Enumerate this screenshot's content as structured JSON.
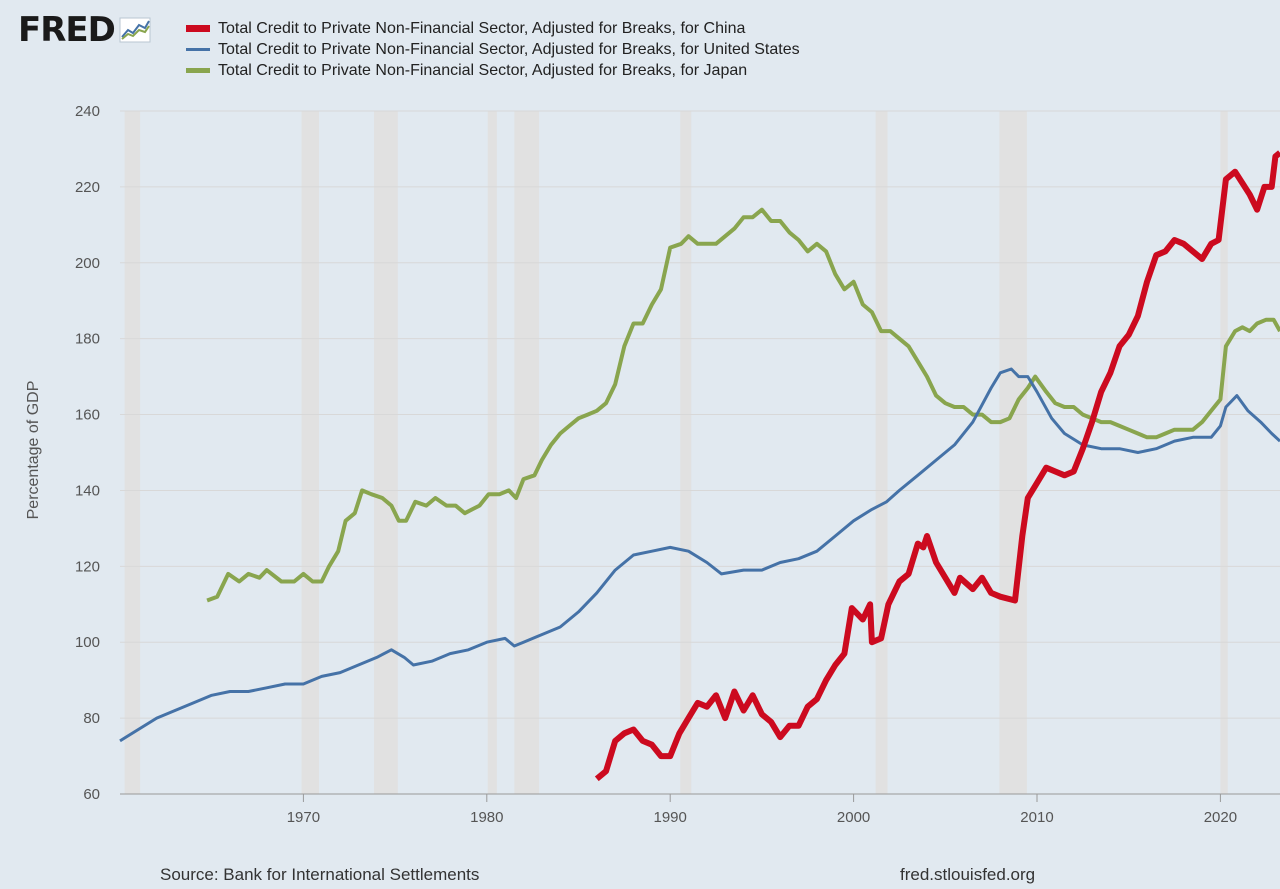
{
  "logo": {
    "text": "FRED"
  },
  "footer": {
    "source": "Source: Bank for International Settlements",
    "url": "fred.stlouisfed.org"
  },
  "colors": {
    "china": "#cc0a1f",
    "us": "#4572a7",
    "japan": "#89a54e",
    "recession": "#e1e1e1",
    "grid": "#d8d8d8",
    "background": "#e1e9f0"
  },
  "chart_data": {
    "type": "line",
    "title": "",
    "xlabel": "",
    "ylabel": "Percentage of GDP",
    "xlim": [
      1960,
      2023.25
    ],
    "ylim": [
      60,
      240
    ],
    "yticks": [
      60,
      80,
      100,
      120,
      140,
      160,
      180,
      200,
      220,
      240
    ],
    "xticks": [
      1970,
      1980,
      1990,
      2000,
      2010,
      2020
    ],
    "legend_position": "top",
    "recessions": [
      [
        1960.25,
        1961.1
      ],
      [
        1969.9,
        1970.85
      ],
      [
        1973.85,
        1975.15
      ],
      [
        1980.05,
        1980.55
      ],
      [
        1981.5,
        1982.85
      ],
      [
        1990.55,
        1991.15
      ],
      [
        2001.2,
        2001.85
      ],
      [
        2007.95,
        2009.45
      ],
      [
        2020.0,
        2020.4
      ]
    ],
    "series": [
      {
        "name": "Total Credit to Private Non-Financial Sector, Adjusted for Breaks, for China",
        "color": "#cc0a1f",
        "width": 6,
        "points": [
          [
            1986.0,
            64
          ],
          [
            1986.5,
            66
          ],
          [
            1987.0,
            74
          ],
          [
            1987.5,
            76
          ],
          [
            1988.0,
            77
          ],
          [
            1988.5,
            74
          ],
          [
            1989.0,
            73
          ],
          [
            1989.5,
            70
          ],
          [
            1990.0,
            70
          ],
          [
            1990.5,
            76
          ],
          [
            1991.0,
            80
          ],
          [
            1991.5,
            84
          ],
          [
            1992.0,
            83
          ],
          [
            1992.5,
            86
          ],
          [
            1993.0,
            80
          ],
          [
            1993.5,
            87
          ],
          [
            1994.0,
            82
          ],
          [
            1994.5,
            86
          ],
          [
            1995.0,
            81
          ],
          [
            1995.5,
            79
          ],
          [
            1996.0,
            75
          ],
          [
            1996.5,
            78
          ],
          [
            1997.0,
            78
          ],
          [
            1997.5,
            83
          ],
          [
            1998.0,
            85
          ],
          [
            1998.5,
            90
          ],
          [
            1999.0,
            94
          ],
          [
            1999.5,
            97
          ],
          [
            1999.9,
            109
          ],
          [
            2000.5,
            106
          ],
          [
            2000.9,
            110
          ],
          [
            2001.0,
            100
          ],
          [
            2001.5,
            101
          ],
          [
            2001.9,
            110
          ],
          [
            2002.5,
            116
          ],
          [
            2003.0,
            118
          ],
          [
            2003.5,
            126
          ],
          [
            2003.8,
            125
          ],
          [
            2004.0,
            128
          ],
          [
            2004.5,
            121
          ],
          [
            2005.0,
            117
          ],
          [
            2005.5,
            113
          ],
          [
            2005.8,
            117
          ],
          [
            2006.5,
            114
          ],
          [
            2007.0,
            117
          ],
          [
            2007.5,
            113
          ],
          [
            2008.0,
            112
          ],
          [
            2008.8,
            111
          ],
          [
            2009.2,
            128
          ],
          [
            2009.5,
            138
          ],
          [
            2010.0,
            142
          ],
          [
            2010.5,
            146
          ],
          [
            2011.0,
            145
          ],
          [
            2011.5,
            144
          ],
          [
            2012.0,
            145
          ],
          [
            2012.5,
            151
          ],
          [
            2013.0,
            158
          ],
          [
            2013.5,
            166
          ],
          [
            2014.0,
            171
          ],
          [
            2014.5,
            178
          ],
          [
            2015.0,
            181
          ],
          [
            2015.5,
            186
          ],
          [
            2016.0,
            195
          ],
          [
            2016.5,
            202
          ],
          [
            2017.0,
            203
          ],
          [
            2017.5,
            206
          ],
          [
            2018.0,
            205
          ],
          [
            2018.5,
            203
          ],
          [
            2019.0,
            201
          ],
          [
            2019.5,
            205
          ],
          [
            2019.9,
            206
          ],
          [
            2020.3,
            222
          ],
          [
            2020.8,
            224
          ],
          [
            2021.2,
            221
          ],
          [
            2021.6,
            218
          ],
          [
            2022.0,
            214
          ],
          [
            2022.4,
            220
          ],
          [
            2022.8,
            220
          ],
          [
            2023.0,
            228
          ],
          [
            2023.25,
            229
          ]
        ]
      },
      {
        "name": "Total Credit to Private Non-Financial Sector, Adjusted for Breaks, for United States",
        "color": "#4572a7",
        "width": 3,
        "points": [
          [
            1960.0,
            74
          ],
          [
            1961.0,
            77
          ],
          [
            1962.0,
            80
          ],
          [
            1963.0,
            82
          ],
          [
            1964.0,
            84
          ],
          [
            1965.0,
            86
          ],
          [
            1966.0,
            87
          ],
          [
            1967.0,
            87
          ],
          [
            1968.0,
            88
          ],
          [
            1969.0,
            89
          ],
          [
            1970.0,
            89
          ],
          [
            1971.0,
            91
          ],
          [
            1972.0,
            92
          ],
          [
            1973.0,
            94
          ],
          [
            1974.0,
            96
          ],
          [
            1974.8,
            98
          ],
          [
            1975.5,
            96
          ],
          [
            1976.0,
            94
          ],
          [
            1977.0,
            95
          ],
          [
            1978.0,
            97
          ],
          [
            1979.0,
            98
          ],
          [
            1980.0,
            100
          ],
          [
            1981.0,
            101
          ],
          [
            1981.5,
            99
          ],
          [
            1982.0,
            100
          ],
          [
            1983.0,
            102
          ],
          [
            1984.0,
            104
          ],
          [
            1985.0,
            108
          ],
          [
            1986.0,
            113
          ],
          [
            1987.0,
            119
          ],
          [
            1988.0,
            123
          ],
          [
            1989.0,
            124
          ],
          [
            1990.0,
            125
          ],
          [
            1991.0,
            124
          ],
          [
            1992.0,
            121
          ],
          [
            1992.8,
            118
          ],
          [
            1994.0,
            119
          ],
          [
            1995.0,
            119
          ],
          [
            1996.0,
            121
          ],
          [
            1997.0,
            122
          ],
          [
            1998.0,
            124
          ],
          [
            1999.0,
            128
          ],
          [
            2000.0,
            132
          ],
          [
            2001.0,
            135
          ],
          [
            2001.8,
            137
          ],
          [
            2002.5,
            140
          ],
          [
            2003.5,
            144
          ],
          [
            2004.5,
            148
          ],
          [
            2005.5,
            152
          ],
          [
            2006.5,
            158
          ],
          [
            2007.5,
            167
          ],
          [
            2008.0,
            171
          ],
          [
            2008.6,
            172
          ],
          [
            2009.0,
            170
          ],
          [
            2009.5,
            170
          ],
          [
            2010.0,
            166
          ],
          [
            2010.8,
            159
          ],
          [
            2011.5,
            155
          ],
          [
            2012.5,
            152
          ],
          [
            2013.5,
            151
          ],
          [
            2014.5,
            151
          ],
          [
            2015.5,
            150
          ],
          [
            2016.5,
            151
          ],
          [
            2017.5,
            153
          ],
          [
            2018.5,
            154
          ],
          [
            2019.5,
            154
          ],
          [
            2020.0,
            157
          ],
          [
            2020.3,
            162
          ],
          [
            2020.9,
            165
          ],
          [
            2021.5,
            161
          ],
          [
            2022.2,
            158
          ],
          [
            2022.8,
            155
          ],
          [
            2023.25,
            153
          ]
        ]
      },
      {
        "name": "Total Credit to Private Non-Financial Sector, Adjusted for Breaks, for Japan",
        "color": "#89a54e",
        "width": 4,
        "points": [
          [
            1964.75,
            111
          ],
          [
            1965.3,
            112
          ],
          [
            1965.9,
            118
          ],
          [
            1966.5,
            116
          ],
          [
            1967.0,
            118
          ],
          [
            1967.6,
            117
          ],
          [
            1968.0,
            119
          ],
          [
            1968.8,
            116
          ],
          [
            1969.5,
            116
          ],
          [
            1970.0,
            118
          ],
          [
            1970.5,
            116
          ],
          [
            1971.0,
            116
          ],
          [
            1971.4,
            120
          ],
          [
            1971.9,
            124
          ],
          [
            1972.3,
            132
          ],
          [
            1972.8,
            134
          ],
          [
            1973.2,
            140
          ],
          [
            1973.7,
            139
          ],
          [
            1974.3,
            138
          ],
          [
            1974.8,
            136
          ],
          [
            1975.2,
            132
          ],
          [
            1975.6,
            132
          ],
          [
            1976.1,
            137
          ],
          [
            1976.7,
            136
          ],
          [
            1977.2,
            138
          ],
          [
            1977.8,
            136
          ],
          [
            1978.3,
            136
          ],
          [
            1978.8,
            134
          ],
          [
            1979.2,
            135
          ],
          [
            1979.6,
            136
          ],
          [
            1980.1,
            139
          ],
          [
            1980.7,
            139
          ],
          [
            1981.2,
            140
          ],
          [
            1981.6,
            138
          ],
          [
            1982.0,
            143
          ],
          [
            1982.6,
            144
          ],
          [
            1983.0,
            148
          ],
          [
            1983.5,
            152
          ],
          [
            1984.0,
            155
          ],
          [
            1984.5,
            157
          ],
          [
            1985.0,
            159
          ],
          [
            1985.5,
            160
          ],
          [
            1986.0,
            161
          ],
          [
            1986.5,
            163
          ],
          [
            1987.0,
            168
          ],
          [
            1987.5,
            178
          ],
          [
            1988.0,
            184
          ],
          [
            1988.5,
            184
          ],
          [
            1989.0,
            189
          ],
          [
            1989.5,
            193
          ],
          [
            1990.0,
            204
          ],
          [
            1990.6,
            205
          ],
          [
            1991.0,
            207
          ],
          [
            1991.5,
            205
          ],
          [
            1992.0,
            205
          ],
          [
            1992.5,
            205
          ],
          [
            1993.0,
            207
          ],
          [
            1993.5,
            209
          ],
          [
            1994.0,
            212
          ],
          [
            1994.5,
            212
          ],
          [
            1995.0,
            214
          ],
          [
            1995.5,
            211
          ],
          [
            1996.0,
            211
          ],
          [
            1996.5,
            208
          ],
          [
            1997.0,
            206
          ],
          [
            1997.5,
            203
          ],
          [
            1998.0,
            205
          ],
          [
            1998.5,
            203
          ],
          [
            1999.0,
            197
          ],
          [
            1999.5,
            193
          ],
          [
            2000.0,
            195
          ],
          [
            2000.5,
            189
          ],
          [
            2001.0,
            187
          ],
          [
            2001.5,
            182
          ],
          [
            2002.0,
            182
          ],
          [
            2002.5,
            180
          ],
          [
            2003.0,
            178
          ],
          [
            2003.5,
            174
          ],
          [
            2004.0,
            170
          ],
          [
            2004.5,
            165
          ],
          [
            2005.0,
            163
          ],
          [
            2005.5,
            162
          ],
          [
            2006.0,
            162
          ],
          [
            2006.5,
            160
          ],
          [
            2007.0,
            160
          ],
          [
            2007.5,
            158
          ],
          [
            2008.0,
            158
          ],
          [
            2008.5,
            159
          ],
          [
            2009.0,
            164
          ],
          [
            2009.5,
            167
          ],
          [
            2009.9,
            170
          ],
          [
            2010.5,
            166
          ],
          [
            2011.0,
            163
          ],
          [
            2011.5,
            162
          ],
          [
            2012.0,
            162
          ],
          [
            2012.5,
            160
          ],
          [
            2013.0,
            159
          ],
          [
            2013.5,
            158
          ],
          [
            2014.0,
            158
          ],
          [
            2014.5,
            157
          ],
          [
            2015.0,
            156
          ],
          [
            2015.5,
            155
          ],
          [
            2016.0,
            154
          ],
          [
            2016.5,
            154
          ],
          [
            2017.0,
            155
          ],
          [
            2017.5,
            156
          ],
          [
            2018.0,
            156
          ],
          [
            2018.5,
            156
          ],
          [
            2019.0,
            158
          ],
          [
            2019.5,
            161
          ],
          [
            2020.0,
            164
          ],
          [
            2020.3,
            178
          ],
          [
            2020.8,
            182
          ],
          [
            2021.2,
            183
          ],
          [
            2021.6,
            182
          ],
          [
            2022.0,
            184
          ],
          [
            2022.5,
            185
          ],
          [
            2022.9,
            185
          ],
          [
            2023.25,
            182
          ]
        ]
      }
    ]
  }
}
